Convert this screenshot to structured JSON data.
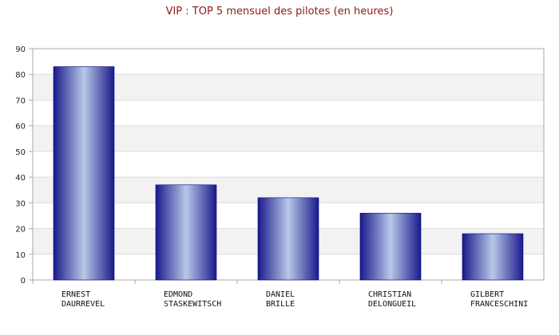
{
  "colors": {
    "title": "#8b1a1a",
    "band_light": "#ffffff",
    "band_shade": "#f2f2f2",
    "gridline": "#dddddd",
    "axis": "#aaaaaa",
    "bar_dark": "#1a1a8c",
    "bar_light": "#b8c8e8",
    "bar_edge": "#000080"
  },
  "chart_data": {
    "type": "bar",
    "title": "VIP : TOP 5 mensuel des pilotes (en heures)",
    "xlabel": "",
    "ylabel": "",
    "ylim": [
      0,
      90
    ],
    "y_ticks": [
      0,
      10,
      20,
      30,
      40,
      50,
      60,
      70,
      80,
      90
    ],
    "grid": true,
    "categories": [
      [
        "ERNEST",
        "DAURREVEL"
      ],
      [
        "EDMOND",
        "STASKEWITSCH"
      ],
      [
        "DANIEL",
        "BRILLE"
      ],
      [
        "CHRISTIAN",
        "DELONGUEIL"
      ],
      [
        "GILBERT",
        "FRANCESCHINI"
      ]
    ],
    "values": [
      83,
      37,
      32,
      26,
      18
    ]
  }
}
